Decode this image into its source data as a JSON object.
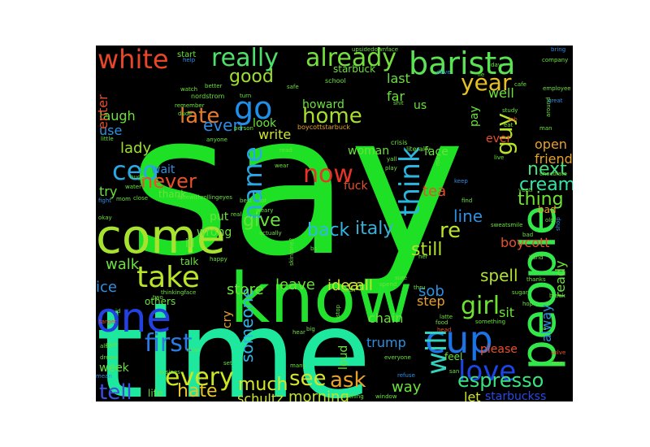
{
  "word_cloud": {
    "words": [
      {
        "text": "say",
        "color": "#1ee126"
      },
      {
        "text": "time",
        "color": "#1de89e"
      },
      {
        "text": "know",
        "color": "#22e22e"
      },
      {
        "text": "people",
        "color": "#33e64a"
      },
      {
        "text": "come",
        "color": "#a6e22e"
      },
      {
        "text": "barista",
        "color": "#5be254"
      },
      {
        "text": "think",
        "color": "#2bb6e0"
      },
      {
        "text": "cup",
        "color": "#1b73e6"
      },
      {
        "text": "one",
        "color": "#2341e0"
      },
      {
        "text": "go",
        "color": "#1f8fe8"
      },
      {
        "text": "take",
        "color": "#b8e52a"
      },
      {
        "text": "really",
        "color": "#4fe06c"
      },
      {
        "text": "already",
        "color": "#74e03c"
      },
      {
        "text": "white",
        "color": "#e8462b"
      },
      {
        "text": "will",
        "color": "#34d2bd"
      },
      {
        "text": "name",
        "color": "#29a8e4"
      },
      {
        "text": "first",
        "color": "#2b7ae3"
      },
      {
        "text": "love",
        "color": "#1c45e6"
      },
      {
        "text": "every",
        "color": "#cce623"
      },
      {
        "text": "now",
        "color": "#e8332b"
      },
      {
        "text": "ceo",
        "color": "#29a8e4"
      },
      {
        "text": "year",
        "color": "#e6c022"
      },
      {
        "text": "guy",
        "color": "#b8e52a"
      },
      {
        "text": "girl",
        "color": "#6ee233"
      },
      {
        "text": "ask",
        "color": "#e8a22b"
      },
      {
        "text": "see",
        "color": "#d4e62a"
      },
      {
        "text": "tell",
        "color": "#3d50e3"
      },
      {
        "text": "espresso",
        "color": "#3be07e"
      },
      {
        "text": "late",
        "color": "#e87a2b"
      },
      {
        "text": "home",
        "color": "#a7e02b"
      },
      {
        "text": "good",
        "color": "#9ee02f"
      },
      {
        "text": "never",
        "color": "#e8502b"
      },
      {
        "text": "re",
        "color": "#b8e52a"
      },
      {
        "text": "thing",
        "color": "#6ee233"
      },
      {
        "text": "hate",
        "color": "#e8c52b"
      },
      {
        "text": "next",
        "color": "#42e07c"
      },
      {
        "text": "cream",
        "color": "#32e5a6"
      },
      {
        "text": "much",
        "color": "#d8e62a"
      },
      {
        "text": "back",
        "color": "#33b7e6"
      },
      {
        "text": "italy",
        "color": "#38b0d8"
      },
      {
        "text": "line",
        "color": "#2d90e3"
      },
      {
        "text": "give",
        "color": "#6ae23a"
      },
      {
        "text": "still",
        "color": "#b0e22e"
      },
      {
        "text": "someone",
        "color": "#32b2e6"
      },
      {
        "text": "morning",
        "color": "#c0e22e"
      },
      {
        "text": "way",
        "color": "#6ae23a"
      },
      {
        "text": "even",
        "color": "#2d8ae3"
      },
      {
        "text": "lady",
        "color": "#9ee02f"
      },
      {
        "text": "try",
        "color": "#6ae23a"
      },
      {
        "text": "walk",
        "color": "#6ae23a"
      },
      {
        "text": "ice",
        "color": "#2d90e3"
      },
      {
        "text": "tea",
        "color": "#e8502b"
      },
      {
        "text": "open",
        "color": "#e8a22b"
      },
      {
        "text": "friend",
        "color": "#e8a22b"
      },
      {
        "text": "spell",
        "color": "#b0e22e"
      },
      {
        "text": "sob",
        "color": "#2d90e3"
      },
      {
        "text": "step",
        "color": "#e8a22b"
      },
      {
        "text": "call",
        "color": "#d0e62a"
      },
      {
        "text": "leave",
        "color": "#6ae23a"
      },
      {
        "text": "idea",
        "color": "#d0e62a"
      },
      {
        "text": "store",
        "color": "#6ae23a"
      },
      {
        "text": "trump",
        "color": "#2d90e3"
      },
      {
        "text": "chain",
        "color": "#6ae23a"
      },
      {
        "text": "boycott",
        "color": "#e8502b"
      },
      {
        "text": "ready",
        "color": "#6ae23a"
      },
      {
        "text": "alway",
        "color": "#2d90e3"
      },
      {
        "text": "sit",
        "color": "#6ae23a"
      },
      {
        "text": "let",
        "color": "#d0e62a"
      },
      {
        "text": "starbuckss",
        "color": "#2b4ae3"
      },
      {
        "text": "schultz",
        "color": "#d0e62a"
      },
      {
        "text": "laugh",
        "color": "#6ae23a"
      },
      {
        "text": "use",
        "color": "#2d90e3"
      },
      {
        "text": "last",
        "color": "#6ae23a"
      },
      {
        "text": "far",
        "color": "#6ae23a"
      },
      {
        "text": "us",
        "color": "#6ae23a"
      },
      {
        "text": "pay",
        "color": "#6ae23a"
      },
      {
        "text": "well",
        "color": "#6ae23a"
      },
      {
        "text": "howard",
        "color": "#6ae23a"
      },
      {
        "text": "look",
        "color": "#6ae23a"
      },
      {
        "text": "write",
        "color": "#d0e62a"
      },
      {
        "text": "enter",
        "color": "#e8502b"
      },
      {
        "text": "wait",
        "color": "#2d90e3"
      },
      {
        "text": "thank",
        "color": "#6ae23a"
      },
      {
        "text": "fuck",
        "color": "#e8502b"
      },
      {
        "text": "woman",
        "color": "#6ae23a"
      },
      {
        "text": "face",
        "color": "#6ae23a"
      },
      {
        "text": "ever",
        "color": "#e8502b"
      },
      {
        "text": "put",
        "color": "#6ae23a"
      },
      {
        "text": "wrong",
        "color": "#6ae23a"
      },
      {
        "text": "ill",
        "color": "#6ae23a"
      },
      {
        "text": "talk",
        "color": "#6ae23a"
      },
      {
        "text": "others",
        "color": "#6ae23a"
      },
      {
        "text": "cry",
        "color": "#e8a22b"
      },
      {
        "text": "week",
        "color": "#6ae23a"
      },
      {
        "text": "life",
        "color": "#6ae23a"
      },
      {
        "text": "loud",
        "color": "#6ae23a"
      },
      {
        "text": "please",
        "color": "#e8502b"
      },
      {
        "text": "feel",
        "color": "#6ae23a"
      },
      {
        "text": "bad",
        "color": "#e8a22b"
      },
      {
        "text": "start",
        "color": "#6ae23a"
      },
      {
        "text": "starbuck",
        "color": "#6ae23a"
      },
      {
        "text": "school",
        "color": "#6ae23a"
      },
      {
        "text": "nordstrom",
        "color": "#6ae23a"
      },
      {
        "text": "boycottstarbuck",
        "color": "#e8a22b"
      },
      {
        "text": "crisis",
        "color": "#6ae23a"
      },
      {
        "text": "literally",
        "color": "#6ae23a"
      },
      {
        "text": "upsidedownface",
        "color": "#6ae23a"
      },
      {
        "text": "bring",
        "color": "#2d90e3"
      },
      {
        "text": "company",
        "color": "#6ae23a"
      },
      {
        "text": "employee",
        "color": "#6ae23a"
      },
      {
        "text": "great",
        "color": "#2d90e3"
      },
      {
        "text": "study",
        "color": "#6ae23a"
      },
      {
        "text": "chocolate",
        "color": "#6ae23a"
      },
      {
        "text": "venti",
        "color": "#6ae23a"
      },
      {
        "text": "shop",
        "color": "#2d90e3"
      },
      {
        "text": "old",
        "color": "#6ae23a"
      },
      {
        "text": "sweatsmile",
        "color": "#6ae23a"
      },
      {
        "text": "hand",
        "color": "#6ae23a"
      },
      {
        "text": "break",
        "color": "#6ae23a"
      },
      {
        "text": "free",
        "color": "#6ae23a"
      },
      {
        "text": "solve",
        "color": "#e8502b"
      },
      {
        "text": "something",
        "color": "#6ae23a"
      },
      {
        "text": "latte",
        "color": "#6ae23a"
      },
      {
        "text": "head",
        "color": "#e8502b"
      },
      {
        "text": "food",
        "color": "#6ae23a"
      },
      {
        "text": "everyone",
        "color": "#6ae23a"
      },
      {
        "text": "refuse",
        "color": "#2d90e3"
      },
      {
        "text": "nothing",
        "color": "#6ae23a"
      },
      {
        "text": "window",
        "color": "#6ae23a"
      },
      {
        "text": "mean",
        "color": "#2d90e3"
      },
      {
        "text": "dream",
        "color": "#6ae23a"
      },
      {
        "text": "busines",
        "color": "#6ae23a"
      },
      {
        "text": "nice",
        "color": "#6ae23a"
      },
      {
        "text": "target",
        "color": "#e8502b"
      },
      {
        "text": "id",
        "color": "#6ae23a"
      },
      {
        "text": "also",
        "color": "#6ae23a"
      },
      {
        "text": "thinkingface",
        "color": "#6ae23a"
      },
      {
        "text": "happy",
        "color": "#6ae23a"
      },
      {
        "text": "close",
        "color": "#6ae23a"
      },
      {
        "text": "facewithrollingeyes",
        "color": "#6ae23a"
      },
      {
        "text": "real",
        "color": "#6ae23a"
      },
      {
        "text": "okay",
        "color": "#6ae23a"
      },
      {
        "text": "mom",
        "color": "#6ae23a"
      },
      {
        "text": "huge",
        "color": "#6ae23a"
      },
      {
        "text": "water",
        "color": "#6ae23a"
      },
      {
        "text": "fight",
        "color": "#2d90e3"
      },
      {
        "text": "remember",
        "color": "#6ae23a"
      },
      {
        "text": "dude",
        "color": "#6ae23a"
      },
      {
        "text": "little",
        "color": "#6ae23a"
      },
      {
        "text": "anyone",
        "color": "#6ae23a"
      },
      {
        "text": "person",
        "color": "#6ae23a"
      },
      {
        "text": "safe",
        "color": "#6ae23a"
      },
      {
        "text": "watch",
        "color": "#6ae23a"
      },
      {
        "text": "better",
        "color": "#6ae23a"
      },
      {
        "text": "help",
        "color": "#2d90e3"
      },
      {
        "text": "turn",
        "color": "#6ae23a"
      },
      {
        "text": "shit",
        "color": "#6ae23a"
      },
      {
        "text": "drive",
        "color": "#2d90e3"
      },
      {
        "text": "job",
        "color": "#e8502b"
      },
      {
        "text": "eat",
        "color": "#6ae23a"
      },
      {
        "text": "man",
        "color": "#6ae23a"
      },
      {
        "text": "around",
        "color": "#6ae23a"
      },
      {
        "text": "yall",
        "color": "#6ae23a"
      },
      {
        "text": "play",
        "color": "#6ae23a"
      },
      {
        "text": "may",
        "color": "#6ae23a"
      },
      {
        "text": "live",
        "color": "#6ae23a"
      },
      {
        "text": "keep",
        "color": "#2d90e3"
      },
      {
        "text": "find",
        "color": "#6ae23a"
      },
      {
        "text": "read",
        "color": "#6ae23a"
      },
      {
        "text": "best",
        "color": "#6ae23a"
      },
      {
        "text": "lot",
        "color": "#6ae23a"
      },
      {
        "text": "weary",
        "color": "#6ae23a"
      },
      {
        "text": "actually",
        "color": "#6ae23a"
      },
      {
        "text": "bc",
        "color": "#6ae23a"
      },
      {
        "text": "bitch",
        "color": "#6ae23a"
      },
      {
        "text": "spend",
        "color": "#6ae23a"
      },
      {
        "text": "sure",
        "color": "#6ae23a"
      },
      {
        "text": "thru",
        "color": "#6ae23a"
      },
      {
        "text": "big",
        "color": "#6ae23a"
      },
      {
        "text": "many",
        "color": "#6ae23a"
      },
      {
        "text": "hear",
        "color": "#6ae23a"
      },
      {
        "text": "near",
        "color": "#6ae23a"
      },
      {
        "text": "set",
        "color": "#6ae23a"
      },
      {
        "text": "two",
        "color": "#6ae23a"
      },
      {
        "text": "san",
        "color": "#6ae23a"
      },
      {
        "text": "her",
        "color": "#6ae23a"
      },
      {
        "text": "skintone2",
        "color": "#6ae23a"
      },
      {
        "text": "istop",
        "color": "#6ae23a"
      },
      {
        "text": "day",
        "color": "#6ae23a"
      },
      {
        "text": "bad",
        "color": "#6ae23a"
      },
      {
        "text": "cafe",
        "color": "#6ae23a"
      },
      {
        "text": "thanks",
        "color": "#6ae23a"
      },
      {
        "text": "sugar",
        "color": "#6ae23a"
      },
      {
        "text": "wear",
        "color": "#6ae23a"
      },
      {
        "text": "lie",
        "color": "#6ae23a"
      },
      {
        "text": "hop",
        "color": "#6ae23a"
      },
      {
        "text": "la",
        "color": "#6ae23a"
      }
    ]
  }
}
